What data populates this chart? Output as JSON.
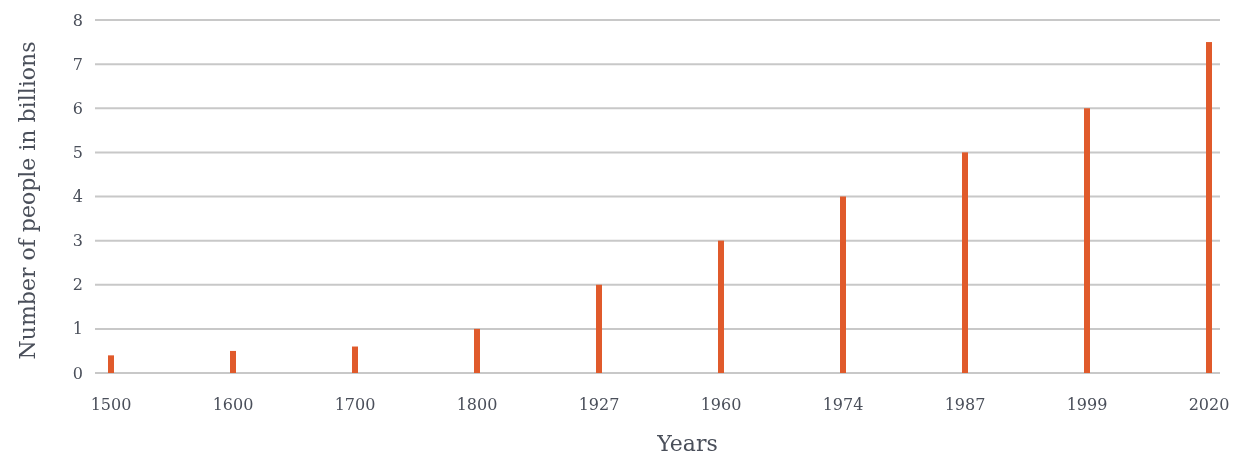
{
  "chart_data": {
    "type": "bar",
    "xlabel": "Years",
    "ylabel": "Number of people in billions",
    "categories": [
      "1500",
      "1600",
      "1700",
      "1800",
      "1927",
      "1960",
      "1974",
      "1987",
      "1999",
      "2020"
    ],
    "values": [
      0.4,
      0.5,
      0.6,
      1,
      2,
      3,
      4,
      5,
      6,
      7.5
    ],
    "color": "#e05a2b",
    "ylim": [
      0,
      8
    ],
    "yticks": [
      0,
      1,
      2,
      3,
      4,
      5,
      6,
      7,
      8
    ],
    "grid": "y"
  }
}
